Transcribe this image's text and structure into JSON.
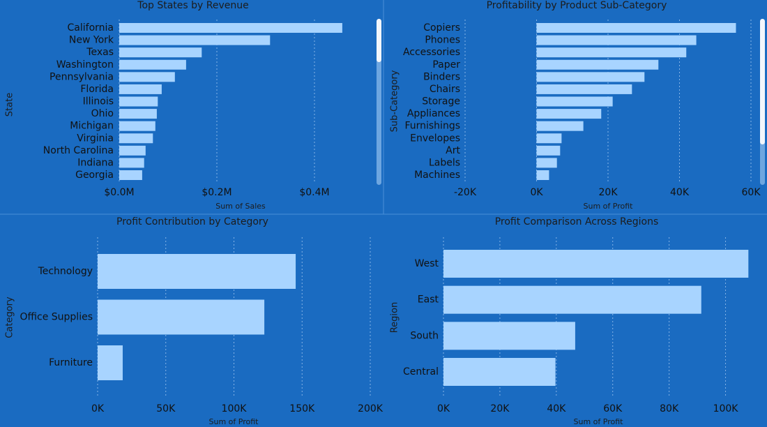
{
  "chart_data": [
    {
      "type": "barh",
      "title": "Top States by Revenue",
      "x_label": "Sum of Sales",
      "y_label": "State",
      "categories": [
        "California",
        "New York",
        "Texas",
        "Washington",
        "Pennsylvania",
        "Florida",
        "Illinois",
        "Ohio",
        "Michigan",
        "Virginia",
        "North Carolina",
        "Indiana",
        "Georgia"
      ],
      "values": [
        457000,
        309000,
        169000,
        137000,
        114000,
        87000,
        79000,
        77000,
        74000,
        69000,
        54000,
        51000,
        47000
      ],
      "color": "#a8d4ff",
      "xlim": [
        0,
        500000
      ],
      "xticks": [
        {
          "value": 0,
          "label": "$0.0M"
        },
        {
          "value": 200000,
          "label": "$0.2M"
        },
        {
          "value": 400000,
          "label": "$0.4M"
        }
      ],
      "grid": true
    },
    {
      "type": "barh",
      "title": "Profitability by Product Sub-Category",
      "x_label": "Sum of Profit",
      "y_label": "Sub-Category",
      "categories": [
        "Copiers",
        "Phones",
        "Accessories",
        "Paper",
        "Binders",
        "Chairs",
        "Storage",
        "Appliances",
        "Furnishings",
        "Envelopes",
        "Art",
        "Labels",
        "Machines"
      ],
      "values": [
        55800,
        44700,
        41900,
        34100,
        30200,
        26700,
        21300,
        18100,
        13100,
        7000,
        6600,
        5700,
        3500
      ],
      "color": "#a8d4ff",
      "xlim": [
        -20000,
        60000
      ],
      "xticks": [
        {
          "value": -20000,
          "label": "-20K"
        },
        {
          "value": 0,
          "label": "0K"
        },
        {
          "value": 20000,
          "label": "20K"
        },
        {
          "value": 40000,
          "label": "40K"
        },
        {
          "value": 60000,
          "label": "60K"
        }
      ],
      "grid": true
    },
    {
      "type": "barh",
      "title": "Profit Contribution by Category",
      "x_label": "Sum of Profit",
      "y_label": "Category",
      "categories": [
        "Technology",
        "Office Supplies",
        "Furniture"
      ],
      "values": [
        145300,
        122300,
        18400
      ],
      "color": "#a8d4ff",
      "xlim": [
        0,
        200000
      ],
      "xticks": [
        {
          "value": 0,
          "label": "0K"
        },
        {
          "value": 50000,
          "label": "50K"
        },
        {
          "value": 100000,
          "label": "100K"
        },
        {
          "value": 150000,
          "label": "150K"
        },
        {
          "value": 200000,
          "label": "200K"
        }
      ],
      "grid": true
    },
    {
      "type": "barh",
      "title": "Profit Comparison Across Regions",
      "x_label": "Sum of Profit",
      "y_label": "Region",
      "categories": [
        "West",
        "East",
        "South",
        "Central"
      ],
      "values": [
        108100,
        91400,
        46700,
        39700
      ],
      "color": "#a8d4ff",
      "xlim": [
        0,
        110000
      ],
      "xticks": [
        {
          "value": 0,
          "label": "0K"
        },
        {
          "value": 20000,
          "label": "20K"
        },
        {
          "value": 40000,
          "label": "40K"
        },
        {
          "value": 60000,
          "label": "60K"
        },
        {
          "value": 80000,
          "label": "80K"
        },
        {
          "value": 100000,
          "label": "100K"
        }
      ],
      "grid": true
    }
  ]
}
